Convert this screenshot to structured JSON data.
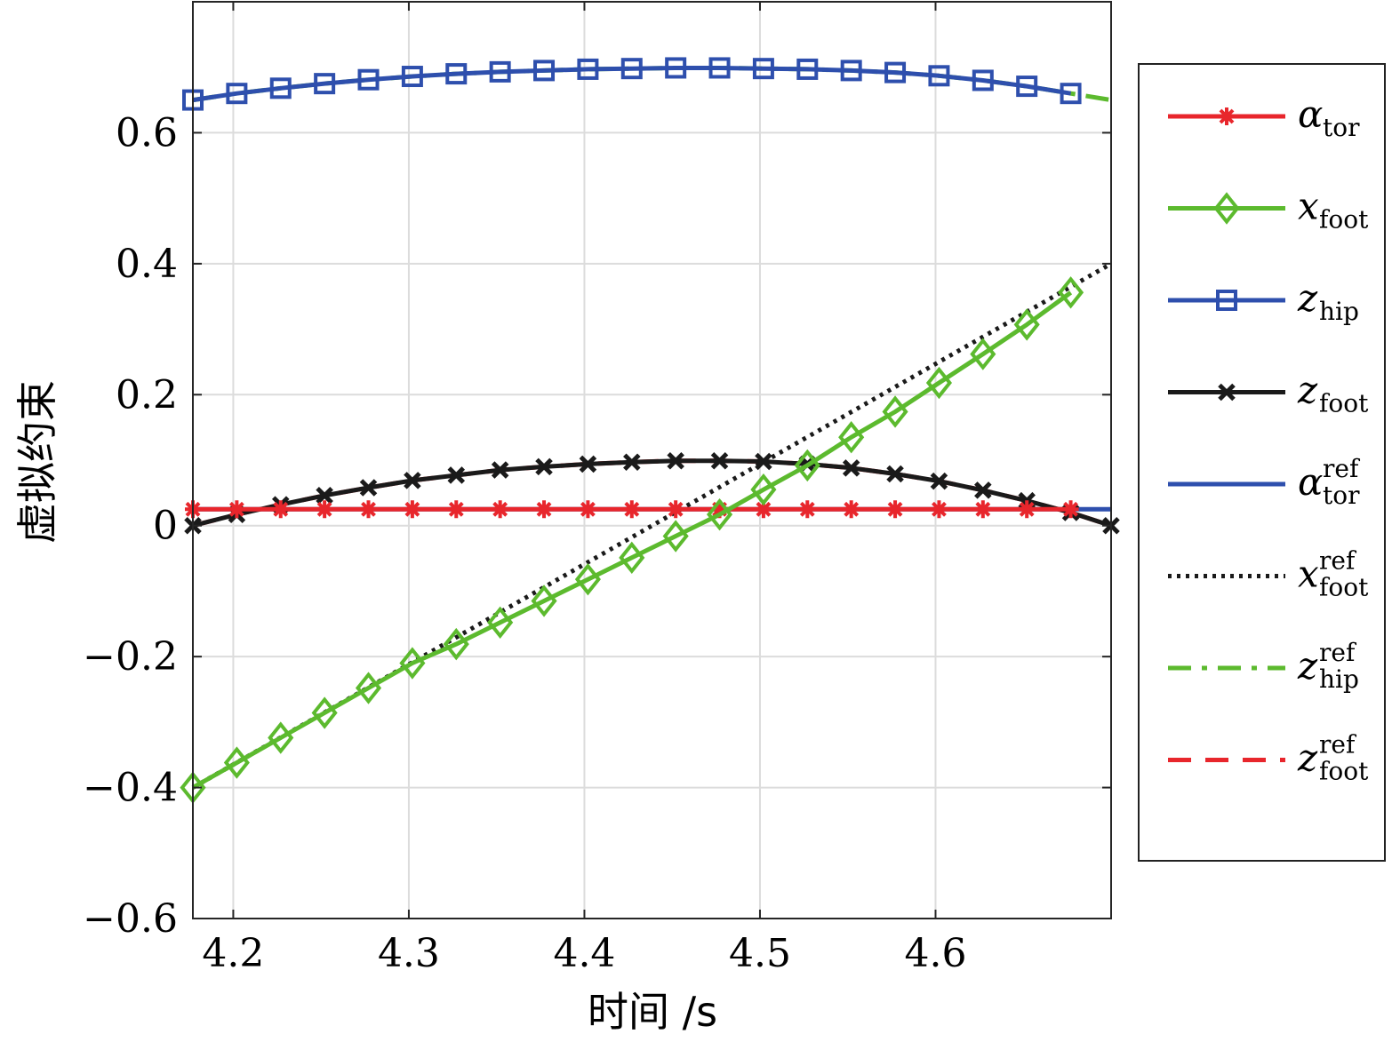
{
  "chart_data": {
    "type": "line",
    "title": "",
    "xlabel": "时间 /s",
    "ylabel": "虚拟约束",
    "xlim": [
      4.177,
      4.7
    ],
    "ylim": [
      -0.6,
      0.8
    ],
    "xticks": [
      4.2,
      4.3,
      4.4,
      4.5,
      4.6
    ],
    "xtick_labels": [
      "4.2",
      "4.3",
      "4.4",
      "4.5",
      "4.6"
    ],
    "yticks": [
      -0.6,
      -0.4,
      -0.2,
      0,
      0.2,
      0.4,
      0.6
    ],
    "ytick_labels": [
      "−0.6",
      "−0.4",
      "−0.2",
      "0",
      "0.2",
      "0.4",
      "0.6"
    ],
    "grid": true,
    "legend_position": "outside-right",
    "series": [
      {
        "name": "α",
        "sub": "tor",
        "sup": "",
        "color": "#e8262c",
        "style": "solid",
        "marker": "asterisk",
        "x": [
          4.177,
          4.202,
          4.227,
          4.252,
          4.277,
          4.302,
          4.327,
          4.352,
          4.377,
          4.402,
          4.427,
          4.452,
          4.477,
          4.502,
          4.527,
          4.552,
          4.577,
          4.602,
          4.627,
          4.652,
          4.677
        ],
        "y": [
          0.025,
          0.025,
          0.025,
          0.025,
          0.025,
          0.025,
          0.025,
          0.025,
          0.025,
          0.025,
          0.025,
          0.025,
          0.025,
          0.025,
          0.025,
          0.025,
          0.025,
          0.025,
          0.025,
          0.025,
          0.025
        ]
      },
      {
        "name": "x",
        "sub": "foot",
        "sup": "",
        "color": "#5cba2e",
        "style": "solid",
        "marker": "diamond",
        "x": [
          4.177,
          4.202,
          4.227,
          4.252,
          4.277,
          4.302,
          4.327,
          4.352,
          4.377,
          4.402,
          4.427,
          4.452,
          4.477,
          4.502,
          4.527,
          4.552,
          4.577,
          4.602,
          4.627,
          4.652,
          4.677
        ],
        "y": [
          -0.4,
          -0.362,
          -0.324,
          -0.286,
          -0.248,
          -0.21,
          -0.181,
          -0.148,
          -0.115,
          -0.082,
          -0.049,
          -0.016,
          0.017,
          0.055,
          0.092,
          0.135,
          0.174,
          0.218,
          0.262,
          0.307,
          0.356
        ]
      },
      {
        "name": "z",
        "sub": "hip",
        "sup": "",
        "color": "#2e4fad",
        "style": "solid",
        "marker": "square",
        "x": [
          4.177,
          4.202,
          4.227,
          4.252,
          4.277,
          4.302,
          4.327,
          4.352,
          4.377,
          4.402,
          4.427,
          4.452,
          4.477,
          4.502,
          4.527,
          4.552,
          4.577,
          4.602,
          4.627,
          4.652,
          4.677
        ],
        "y": [
          0.65,
          0.66,
          0.668,
          0.675,
          0.681,
          0.686,
          0.69,
          0.693,
          0.695,
          0.697,
          0.698,
          0.699,
          0.699,
          0.698,
          0.697,
          0.695,
          0.692,
          0.687,
          0.68,
          0.671,
          0.66
        ]
      },
      {
        "name": "z",
        "sub": "foot",
        "sup": "",
        "color": "#1a1a1a",
        "style": "solid",
        "marker": "cross",
        "x": [
          4.177,
          4.202,
          4.227,
          4.252,
          4.277,
          4.302,
          4.327,
          4.352,
          4.377,
          4.402,
          4.427,
          4.452,
          4.477,
          4.502,
          4.527,
          4.552,
          4.577,
          4.602,
          4.627,
          4.652,
          4.677,
          4.7
        ],
        "y": [
          0.0,
          0.017,
          0.032,
          0.046,
          0.058,
          0.069,
          0.077,
          0.085,
          0.09,
          0.094,
          0.097,
          0.099,
          0.099,
          0.098,
          0.094,
          0.088,
          0.079,
          0.068,
          0.054,
          0.038,
          0.02,
          0.0
        ]
      },
      {
        "name": "α",
        "sub": "tor",
        "sup": "ref",
        "color": "#2e4fad",
        "style": "solid",
        "marker": "none",
        "x": [
          4.177,
          4.7
        ],
        "y": [
          0.025,
          0.025
        ]
      },
      {
        "name": "x",
        "sub": "foot",
        "sup": "ref",
        "color": "#1a1a1a",
        "style": "dotted",
        "marker": "none",
        "x": [
          4.177,
          4.7
        ],
        "y": [
          -0.4,
          0.4
        ]
      },
      {
        "name": "z",
        "sub": "hip",
        "sup": "ref",
        "color": "#5cba2e",
        "style": "dashdot",
        "marker": "none",
        "x": [
          4.177,
          4.202,
          4.227,
          4.252,
          4.277,
          4.302,
          4.327,
          4.352,
          4.377,
          4.402,
          4.427,
          4.452,
          4.477,
          4.502,
          4.527,
          4.552,
          4.577,
          4.602,
          4.627,
          4.652,
          4.677,
          4.7
        ],
        "y": [
          0.65,
          0.66,
          0.668,
          0.675,
          0.681,
          0.686,
          0.69,
          0.693,
          0.695,
          0.697,
          0.698,
          0.699,
          0.699,
          0.698,
          0.697,
          0.695,
          0.692,
          0.687,
          0.68,
          0.671,
          0.66,
          0.65
        ]
      },
      {
        "name": "z",
        "sub": "foot",
        "sup": "ref",
        "color": "#e8262c",
        "style": "dashed",
        "marker": "none",
        "x": [
          4.177,
          4.202,
          4.227,
          4.252,
          4.277,
          4.302,
          4.327,
          4.352,
          4.377,
          4.402,
          4.427,
          4.452,
          4.477,
          4.502,
          4.527,
          4.552,
          4.577,
          4.602,
          4.627,
          4.652,
          4.677,
          4.7
        ],
        "y": [
          0.0,
          0.017,
          0.032,
          0.046,
          0.058,
          0.069,
          0.077,
          0.085,
          0.09,
          0.094,
          0.097,
          0.099,
          0.099,
          0.098,
          0.094,
          0.088,
          0.079,
          0.068,
          0.054,
          0.038,
          0.02,
          0.0
        ]
      }
    ]
  }
}
